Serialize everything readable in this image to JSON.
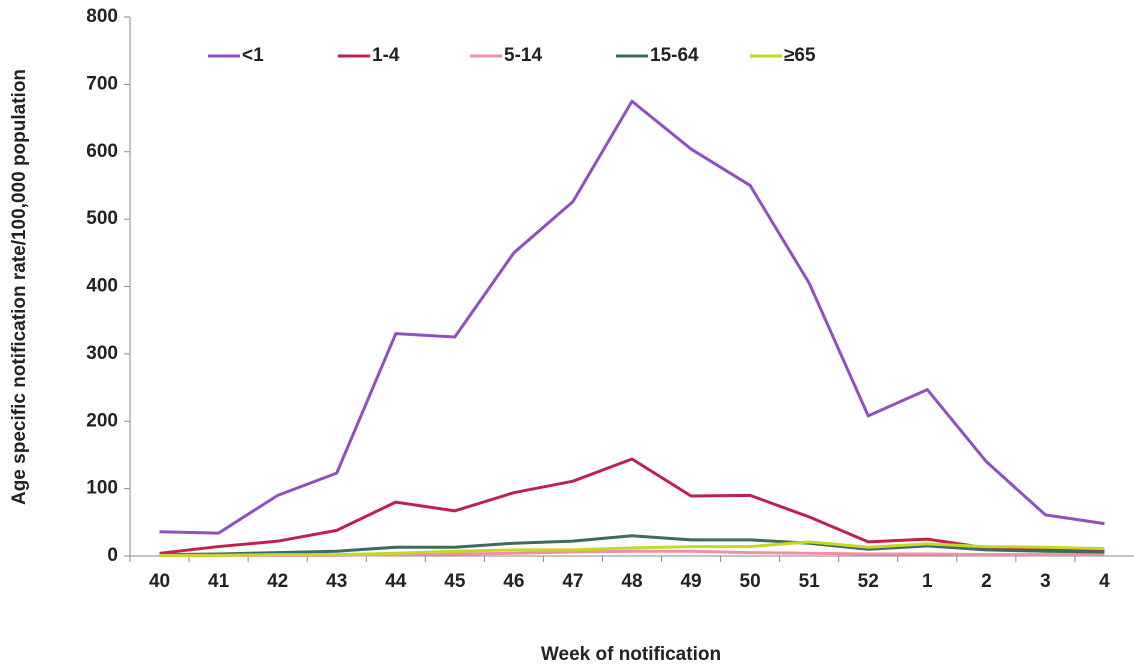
{
  "chart_data": {
    "type": "line",
    "y_label": "Age specific notification rate/100,000 population",
    "x_label": "Week of notification",
    "categories": [
      "40",
      "41",
      "42",
      "43",
      "44",
      "45",
      "46",
      "47",
      "48",
      "49",
      "50",
      "51",
      "52",
      "1",
      "2",
      "3",
      "4"
    ],
    "series": [
      {
        "name": "<1",
        "color": "#9050bf",
        "values": [
          36,
          34,
          90,
          123,
          330,
          325,
          450,
          526,
          675,
          604,
          550,
          405,
          208,
          247,
          140,
          61,
          48
        ]
      },
      {
        "name": "1-4",
        "color": "#c0214a",
        "values": [
          4,
          14,
          22,
          38,
          80,
          67,
          94,
          111,
          144,
          89,
          90,
          58,
          21,
          25,
          12,
          10,
          8
        ]
      },
      {
        "name": "5-14",
        "color": "#f08fa8",
        "values": [
          1,
          1,
          1,
          1,
          2,
          3,
          4,
          6,
          7,
          7,
          5,
          4,
          3,
          3,
          2,
          2,
          2
        ]
      },
      {
        "name": "15-64",
        "color": "#3d6b5e",
        "values": [
          2,
          3,
          5,
          7,
          13,
          13,
          19,
          22,
          30,
          24,
          24,
          19,
          10,
          15,
          9,
          7,
          6
        ]
      },
      {
        "name": "≥65",
        "color": "#c5d82a",
        "values": [
          1,
          1,
          2,
          2,
          4,
          7,
          9,
          9,
          12,
          14,
          14,
          21,
          13,
          18,
          14,
          13,
          11
        ]
      }
    ],
    "ylim": [
      0,
      800
    ],
    "yticks": [
      0,
      100,
      200,
      300,
      400,
      500,
      600,
      700,
      800
    ],
    "grid": false,
    "legend": "top"
  }
}
